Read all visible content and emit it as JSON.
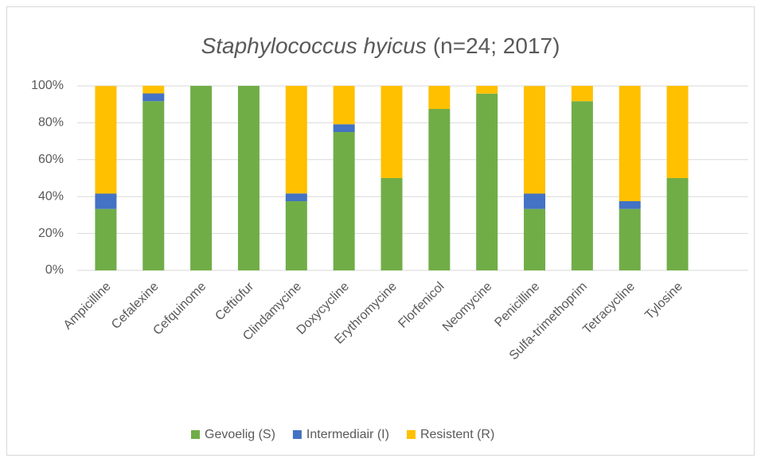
{
  "chart_data": {
    "type": "stacked_bar",
    "title_parts": [
      "Staphylococcus hyicus",
      "(n=24; 2017)"
    ],
    "categories": [
      "Ampicilline",
      "Cefalexine",
      "Cefquinome",
      "Ceftiofur",
      "Clindamycine",
      "Doxycycline",
      "Erythromycine",
      "Florfenicol",
      "Neomycine",
      "Penicilline",
      "Sulfa-trimethoprim",
      "Tetracycline",
      "Tylosine"
    ],
    "series": [
      {
        "name": "Gevoelig (S)",
        "color": "#70ad47",
        "values": [
          33.3,
          91.7,
          100,
          100,
          37.5,
          75,
          50,
          87.5,
          95.8,
          33.3,
          91.7,
          33.3,
          50
        ]
      },
      {
        "name": "Intermediair (I)",
        "color": "#4472c4",
        "values": [
          8.3,
          4.2,
          0,
          0,
          4.2,
          4.2,
          0,
          0,
          0,
          8.3,
          0,
          4.2,
          0
        ]
      },
      {
        "name": "Resistent (R)",
        "color": "#ffc000",
        "values": [
          58.3,
          4.2,
          0,
          0,
          58.3,
          20.8,
          50,
          12.5,
          4.2,
          58.3,
          8.3,
          62.5,
          50
        ]
      }
    ],
    "ylim": [
      0,
      100
    ],
    "yticks": [
      {
        "value": 0,
        "label": "0%"
      },
      {
        "value": 20,
        "label": "20%"
      },
      {
        "value": 40,
        "label": "40%"
      },
      {
        "value": 60,
        "label": "60%"
      },
      {
        "value": 80,
        "label": "80%"
      },
      {
        "value": 100,
        "label": "100%"
      }
    ],
    "grid": true,
    "legend": "bottom"
  }
}
